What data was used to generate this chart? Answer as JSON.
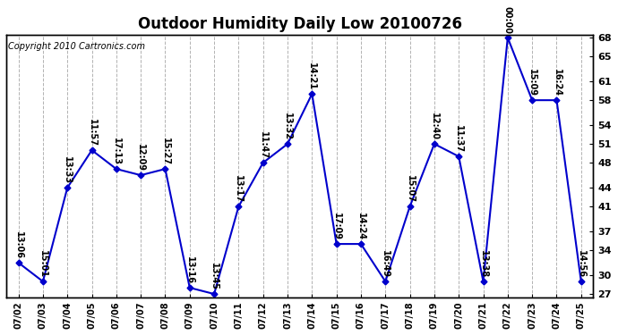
{
  "title": "Outdoor Humidity Daily Low 20100726",
  "copyright": "Copyright 2010 Cartronics.com",
  "background_color": "#ffffff",
  "line_color": "#0000cc",
  "marker_color": "#0000cc",
  "grid_color": "#aaaaaa",
  "x_labels": [
    "07/02",
    "07/03",
    "07/04",
    "07/05",
    "07/06",
    "07/07",
    "07/08",
    "07/09",
    "07/10",
    "07/11",
    "07/12",
    "07/13",
    "07/14",
    "07/15",
    "07/16",
    "07/17",
    "07/18",
    "07/19",
    "07/20",
    "07/21",
    "07/22",
    "07/23",
    "07/24",
    "07/25"
  ],
  "y_values": [
    32,
    29,
    44,
    50,
    47,
    46,
    47,
    28,
    27,
    41,
    48,
    51,
    59,
    35,
    35,
    29,
    41,
    51,
    49,
    29,
    68,
    58,
    58,
    29
  ],
  "time_labels": [
    "13:06",
    "15:01",
    "13:33",
    "11:57",
    "17:13",
    "12:09",
    "15:27",
    "13:16",
    "13:45",
    "13:17",
    "11:47",
    "13:32",
    "14:21",
    "17:09",
    "14:24",
    "16:49",
    "15:07",
    "12:40",
    "11:37",
    "13:38",
    "00:00",
    "15:09",
    "16:24",
    "14:56"
  ],
  "ylim": [
    27,
    68
  ],
  "yticks": [
    27,
    30,
    34,
    37,
    41,
    44,
    48,
    51,
    54,
    58,
    61,
    65,
    68
  ],
  "title_fontsize": 12,
  "label_fontsize": 7,
  "copyright_fontsize": 7
}
